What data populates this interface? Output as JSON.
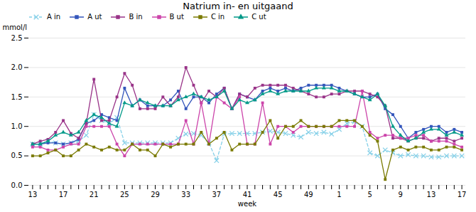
{
  "chart_data": {
    "type": "line",
    "title": "Natrium in- en uitgaand",
    "xlabel": "week",
    "ylabel": "mmol/l",
    "categories": [
      13,
      null,
      null,
      null,
      17,
      null,
      null,
      null,
      21,
      null,
      null,
      null,
      25,
      null,
      null,
      null,
      29,
      null,
      null,
      null,
      33,
      null,
      null,
      null,
      37,
      null,
      null,
      null,
      41,
      null,
      null,
      null,
      45,
      null,
      null,
      null,
      49,
      null,
      null,
      null,
      1,
      null,
      null,
      null,
      5,
      null,
      null,
      null,
      9,
      null,
      null,
      null,
      13,
      null,
      null,
      null,
      17
    ],
    "ylim": [
      0,
      2.5
    ],
    "yticks": [
      {
        "value": 0,
        "label": "0.0"
      },
      {
        "value": 0.5,
        "label": "0.5"
      },
      {
        "value": 1.0,
        "label": "1.0"
      },
      {
        "value": 1.5,
        "label": "1.5"
      },
      {
        "value": 2.0,
        "label": "2.0"
      },
      {
        "value": 2.5,
        "label": "2.5"
      }
    ],
    "grid": true,
    "legend": "upper left",
    "series": [
      {
        "name": "A in",
        "color": "#85d0e8",
        "marker": "x",
        "line_style": "dashed",
        "values": [
          0.7,
          0.7,
          0.75,
          0.72,
          0.7,
          0.72,
          0.75,
          0.85,
          1.2,
          1.1,
          1.05,
          1.15,
          0.72,
          0.72,
          0.72,
          0.72,
          0.72,
          0.72,
          0.72,
          0.8,
          0.87,
          0.88,
          0.85,
          0.72,
          0.42,
          0.87,
          0.88,
          0.88,
          0.88,
          0.88,
          0.9,
          0.92,
          0.9,
          0.88,
          0.85,
          0.82,
          0.9,
          0.88,
          0.9,
          0.87,
          0.95,
          1.05,
          1.08,
          1.0,
          0.55,
          0.5,
          0.6,
          0.55,
          0.5,
          0.52,
          0.5,
          0.5,
          0.48,
          0.48,
          0.5,
          0.5,
          0.5
        ]
      },
      {
        "name": "A ut",
        "color": "#3355bb",
        "marker": "square",
        "line_style": "solid",
        "values": [
          0.7,
          0.7,
          0.72,
          0.72,
          0.7,
          0.72,
          0.78,
          1.05,
          1.1,
          1.2,
          1.15,
          1.1,
          1.65,
          1.35,
          1.45,
          1.35,
          1.35,
          1.35,
          1.45,
          1.6,
          1.3,
          1.5,
          1.5,
          1.4,
          1.55,
          1.65,
          1.3,
          1.55,
          1.5,
          1.45,
          1.6,
          1.65,
          1.6,
          1.65,
          1.6,
          1.65,
          1.7,
          1.7,
          1.7,
          1.7,
          1.65,
          1.6,
          1.55,
          1.5,
          1.5,
          1.55,
          1.3,
          1.2,
          1.0,
          0.8,
          0.9,
          0.95,
          1.0,
          1.0,
          0.9,
          0.95,
          0.9
        ]
      },
      {
        "name": "B in",
        "color": "#993388",
        "marker": "square",
        "line_style": "solid",
        "values": [
          0.7,
          0.75,
          0.78,
          0.9,
          1.1,
          0.88,
          0.8,
          1.05,
          1.8,
          1.1,
          1.1,
          1.5,
          1.9,
          1.7,
          1.3,
          1.3,
          1.3,
          1.5,
          1.35,
          1.5,
          2.0,
          1.7,
          1.4,
          1.6,
          1.5,
          1.65,
          1.3,
          1.55,
          1.5,
          1.65,
          1.7,
          1.7,
          1.7,
          1.7,
          1.65,
          1.6,
          1.55,
          1.5,
          1.5,
          1.55,
          1.55,
          1.6,
          1.6,
          1.6,
          1.55,
          1.5,
          1.35,
          0.8,
          0.8,
          0.75,
          0.8,
          0.8,
          0.75,
          0.8,
          0.8,
          0.75,
          0.8
        ]
      },
      {
        "name": "B ut",
        "color": "#cc44aa",
        "marker": "square",
        "line_style": "solid",
        "values": [
          0.65,
          0.65,
          0.6,
          0.6,
          0.65,
          0.7,
          0.7,
          1.0,
          1.0,
          1.0,
          1.0,
          0.7,
          0.5,
          0.7,
          0.7,
          0.7,
          0.7,
          0.7,
          0.7,
          0.7,
          1.1,
          0.7,
          1.4,
          0.7,
          1.5,
          1.4,
          1.3,
          1.5,
          0.7,
          0.7,
          1.4,
          0.7,
          1.0,
          1.0,
          0.9,
          1.0,
          1.0,
          1.0,
          1.0,
          1.0,
          1.0,
          1.0,
          1.0,
          1.6,
          0.9,
          0.8,
          0.85,
          0.85,
          0.8,
          0.8,
          0.85,
          0.85,
          0.75,
          0.75,
          0.75,
          0.7,
          0.65
        ]
      },
      {
        "name": "C in",
        "color": "#7a7a00",
        "marker": "square",
        "line_style": "solid",
        "values": [
          0.5,
          0.5,
          0.55,
          0.6,
          0.5,
          0.5,
          0.6,
          0.7,
          0.65,
          0.6,
          0.65,
          0.6,
          0.6,
          0.7,
          0.6,
          0.6,
          0.5,
          0.7,
          0.65,
          0.7,
          0.7,
          0.7,
          0.9,
          0.7,
          0.8,
          0.9,
          0.6,
          0.7,
          0.7,
          0.7,
          0.9,
          1.1,
          0.8,
          1.0,
          1.0,
          1.1,
          1.0,
          1.0,
          1.0,
          1.0,
          1.1,
          1.1,
          1.1,
          1.0,
          0.85,
          0.75,
          0.1,
          0.6,
          0.65,
          0.6,
          0.65,
          0.65,
          0.6,
          0.6,
          0.65,
          0.65,
          0.6
        ]
      },
      {
        "name": "C ut",
        "color": "#009988",
        "marker": "triangle",
        "line_style": "solid",
        "values": [
          0.7,
          0.7,
          0.75,
          0.85,
          0.9,
          0.85,
          0.9,
          1.1,
          1.2,
          1.15,
          1.05,
          1.0,
          1.4,
          1.35,
          1.45,
          1.4,
          1.35,
          1.35,
          1.35,
          1.45,
          1.5,
          1.55,
          1.5,
          1.45,
          1.5,
          1.6,
          1.3,
          1.45,
          1.4,
          1.45,
          1.55,
          1.6,
          1.55,
          1.6,
          1.6,
          1.6,
          1.6,
          1.65,
          1.65,
          1.65,
          1.6,
          1.6,
          1.55,
          1.5,
          1.45,
          1.55,
          1.35,
          1.0,
          0.85,
          0.75,
          0.8,
          0.9,
          0.95,
          0.95,
          0.85,
          0.9,
          0.85
        ]
      }
    ]
  }
}
